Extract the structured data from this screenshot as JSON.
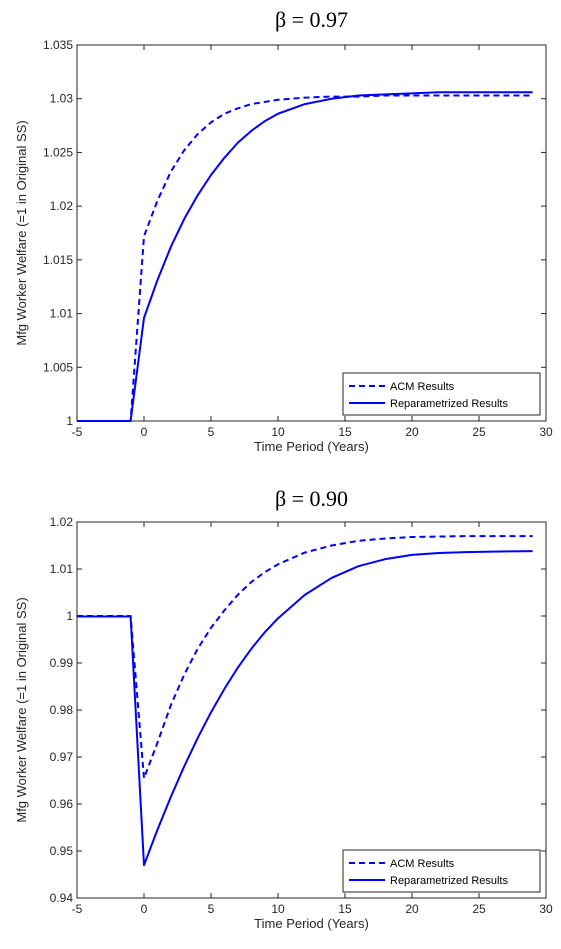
{
  "chart_data": [
    {
      "type": "line",
      "title": "β = 0.97",
      "xlabel": "Time Period (Years)",
      "ylabel": "Mfg Worker Welfare (=1 in Original SS)",
      "xlim": [
        -5,
        30
      ],
      "ylim": [
        1.0,
        1.035
      ],
      "xticks": [
        -5,
        0,
        5,
        10,
        15,
        20,
        25,
        30
      ],
      "yticks": [
        "1",
        "1.005",
        "1.01",
        "1.015",
        "1.02",
        "1.025",
        "1.03",
        "1.035"
      ],
      "ytick_values": [
        1.0,
        1.005,
        1.01,
        1.015,
        1.02,
        1.025,
        1.03,
        1.035
      ],
      "grid": false,
      "legend_position": "bottom-right",
      "color": "#0000ff",
      "series": [
        {
          "name": "ACM Results",
          "style": "dashed",
          "x": [
            -5,
            -1,
            0,
            1,
            2,
            3,
            4,
            5,
            6,
            7,
            8,
            9,
            10,
            12,
            14,
            16,
            18,
            20,
            22,
            24,
            26,
            29
          ],
          "y": [
            1.0,
            1.0,
            1.0172,
            1.0205,
            1.0232,
            1.0252,
            1.0267,
            1.0278,
            1.0286,
            1.0291,
            1.0295,
            1.0297,
            1.0299,
            1.0301,
            1.0302,
            1.0302,
            1.0303,
            1.0303,
            1.0303,
            1.0303,
            1.0303,
            1.0303
          ]
        },
        {
          "name": "Reparametrized Results",
          "style": "solid",
          "x": [
            -5,
            -1,
            0,
            1,
            2,
            3,
            4,
            5,
            6,
            7,
            8,
            9,
            10,
            12,
            14,
            16,
            18,
            20,
            22,
            24,
            26,
            29
          ],
          "y": [
            1.0,
            1.0,
            1.0096,
            1.0131,
            1.0162,
            1.0188,
            1.021,
            1.0229,
            1.0245,
            1.0259,
            1.027,
            1.0279,
            1.0286,
            1.0295,
            1.03,
            1.0303,
            1.0304,
            1.0305,
            1.0306,
            1.0306,
            1.0306,
            1.0306
          ]
        }
      ]
    },
    {
      "type": "line",
      "title": "β = 0.90",
      "xlabel": "Time Period (Years)",
      "ylabel": "Mfg Worker Welfare (=1 in Original SS)",
      "xlim": [
        -5,
        30
      ],
      "ylim": [
        0.94,
        1.02
      ],
      "xticks": [
        -5,
        0,
        5,
        10,
        15,
        20,
        25,
        30
      ],
      "yticks": [
        "0.94",
        "0.95",
        "0.96",
        "0.97",
        "0.98",
        "0.99",
        "1",
        "1.01",
        "1.02"
      ],
      "ytick_values": [
        0.94,
        0.95,
        0.96,
        0.97,
        0.98,
        0.99,
        1.0,
        1.01,
        1.02
      ],
      "grid": false,
      "legend_position": "bottom-right",
      "color": "#0000ff",
      "series": [
        {
          "name": "ACM Results",
          "style": "dashed",
          "x": [
            -5,
            -1,
            0,
            1,
            2,
            3,
            4,
            5,
            6,
            7,
            8,
            9,
            10,
            12,
            14,
            16,
            18,
            20,
            22,
            24,
            26,
            29
          ],
          "y": [
            1.0,
            1.0,
            0.9655,
            0.973,
            0.981,
            0.9875,
            0.993,
            0.9975,
            1.0012,
            1.0045,
            1.0072,
            1.0093,
            1.011,
            1.0135,
            1.015,
            1.016,
            1.0165,
            1.0168,
            1.0169,
            1.017,
            1.017,
            1.017
          ]
        },
        {
          "name": "Reparametrized Results",
          "style": "solid",
          "x": [
            -5,
            -1,
            0,
            1,
            2,
            3,
            4,
            5,
            6,
            7,
            8,
            9,
            10,
            12,
            14,
            16,
            18,
            20,
            22,
            24,
            26,
            29
          ],
          "y": [
            0.9999,
            0.9999,
            0.947,
            0.9545,
            0.9615,
            0.968,
            0.974,
            0.9795,
            0.9845,
            0.989,
            0.993,
            0.9965,
            0.9995,
            1.0045,
            1.0081,
            1.0106,
            1.0121,
            1.013,
            1.0134,
            1.0136,
            1.0137,
            1.0138
          ]
        }
      ]
    }
  ]
}
